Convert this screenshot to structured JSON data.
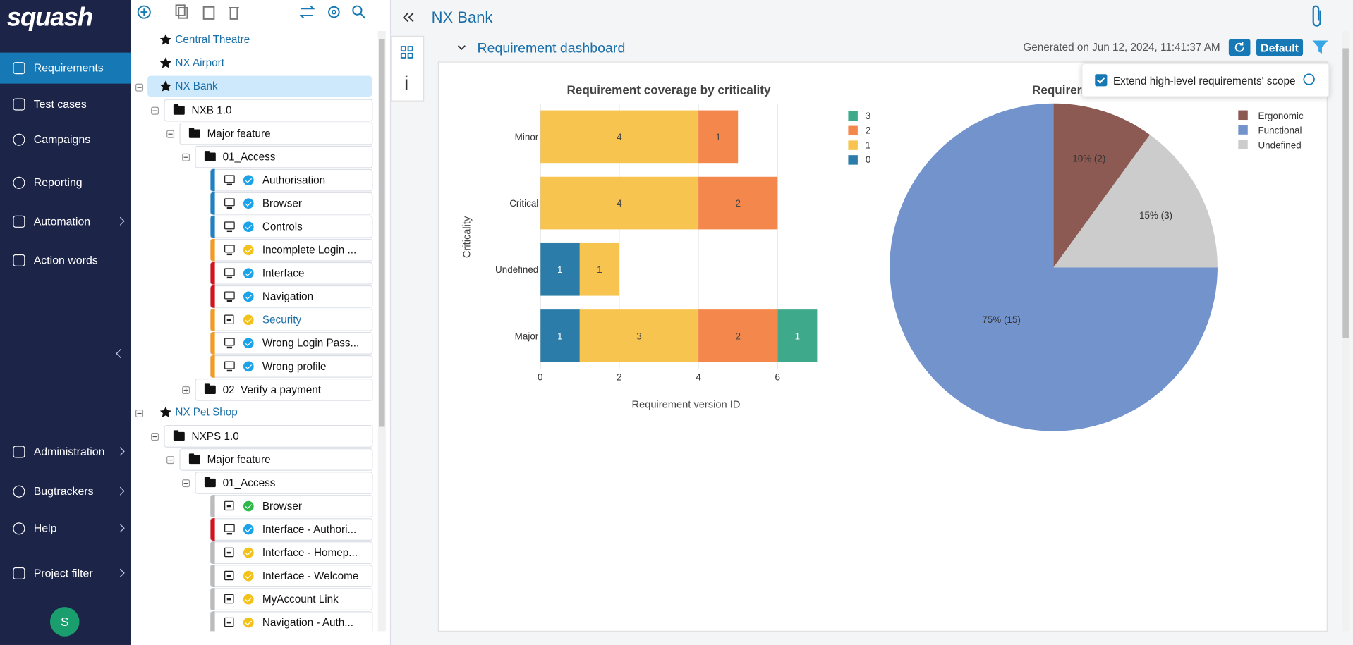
{
  "sidebar": {
    "logo": "squash",
    "items": [
      "Requirements",
      "Test cases",
      "Campaigns",
      "Reporting",
      "Automation",
      "Action words",
      "Administration",
      "Bugtrackers",
      "Help",
      "Project filter"
    ],
    "avatar": "S"
  },
  "tree": {
    "nodes": [
      "Central Theatre",
      "NX Airport",
      "NX Bank",
      "NXB 1.0",
      "Major feature",
      "01_Access",
      "Authorisation",
      "Browser",
      "Controls",
      "Incomplete Login ...",
      "Interface",
      "Navigation",
      "Security",
      "Wrong Login Pass...",
      "Wrong profile",
      "02_Verify a payment",
      "NX Pet Shop",
      "NXPS 1.0",
      "Major feature",
      "01_Access",
      "Browser",
      "Interface - Authori...",
      "Interface - Homep...",
      "Interface - Welcome",
      "MyAccount Link",
      "Navigation - Auth..."
    ]
  },
  "header": {
    "title": "NX Bank"
  },
  "dashboard": {
    "title": "Requirement dashboard",
    "generated": "Generated on Jun 12, 2024, 11:41:37 AM",
    "default_button": "Default",
    "popover": {
      "option": "Extend high-level requirements' scope"
    }
  },
  "chart_data": [
    {
      "type": "bar",
      "orientation": "horizontal",
      "stacked": true,
      "title": "Requirement coverage by criticality",
      "x_label": "Requirement version ID",
      "y_label": "Criticality",
      "categories": [
        "Minor",
        "Critical",
        "Undefined",
        "Major"
      ],
      "series": [
        {
          "name": "0",
          "color": "#2b7ca8",
          "values": [
            null,
            null,
            1,
            1
          ]
        },
        {
          "name": "1",
          "color": "#f7c450",
          "values": [
            4,
            4,
            1,
            3
          ]
        },
        {
          "name": "2",
          "color": "#f4874b",
          "values": [
            1,
            2,
            null,
            2
          ]
        },
        {
          "name": "3",
          "color": "#3fa98c",
          "values": [
            null,
            null,
            null,
            1
          ]
        }
      ],
      "xlim": [
        0,
        7
      ],
      "xticks": [
        0,
        2,
        4,
        6
      ],
      "grid": true
    },
    {
      "type": "pie",
      "title": "Requiremen",
      "categories": [
        "Ergonomic",
        "Functional",
        "Undefined"
      ],
      "values": [
        2,
        15,
        3
      ],
      "value_labels": [
        "10% (2)",
        "75% (15)",
        "15% (3)"
      ],
      "colors": [
        "#8c5a52",
        "#7393cc",
        "#cccccc"
      ]
    }
  ]
}
